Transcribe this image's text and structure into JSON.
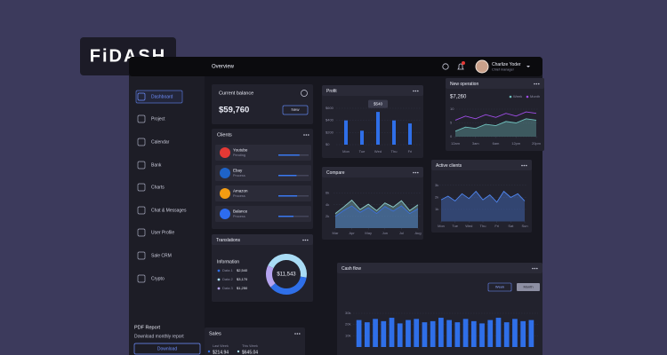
{
  "logo": "FiDASH",
  "topbar": {
    "title": "Overview",
    "user_name": "Charlize Yoder",
    "user_role": "Chief manager"
  },
  "sidebar": {
    "items": [
      "Dashboard",
      "Project",
      "Calendar",
      "Bank",
      "Charts",
      "Chat & Messages",
      "User Profile",
      "Sale CRM",
      "Crypto"
    ],
    "report_title": "PDF Report",
    "report_text": "Download monthly report",
    "button": "Download"
  },
  "balance": {
    "label": "Current balance",
    "value": "$59,760",
    "button": "New"
  },
  "clients": {
    "title": "Clients",
    "rows": [
      {
        "name": "Youtube",
        "status": "Pending",
        "progress": 70,
        "color": "#e53935"
      },
      {
        "name": "Ebay",
        "status": "Process",
        "progress": 60,
        "color": "#1e63c8"
      },
      {
        "name": "Amazon",
        "status": "Process",
        "progress": 62,
        "color": "#f39c12"
      },
      {
        "name": "Balance",
        "status": "Process",
        "progress": 50,
        "color": "#2d6cf0"
      }
    ]
  },
  "sales": {
    "title": "Sales",
    "items": [
      {
        "label": "Last Week",
        "value": "$214.94"
      },
      {
        "label": "This Week",
        "value": "$645.04"
      }
    ]
  },
  "chart_data": [
    {
      "type": "bar",
      "title": "Profit",
      "categories": [
        "Mon",
        "Tue",
        "Wed",
        "Thu",
        "Fri"
      ],
      "values": [
        400,
        230,
        540,
        400,
        350
      ],
      "color": "#2f6fe8",
      "tooltip": "$540",
      "ylim": [
        0,
        600
      ],
      "yticks": [
        {
          "value": 0,
          "label": "$0"
        },
        {
          "value": 200,
          "label": "$200"
        },
        {
          "value": 400,
          "label": "$400"
        },
        {
          "value": 600,
          "label": "$600"
        }
      ],
      "grid": true
    },
    {
      "type": "line",
      "title": "New operation",
      "subtitle": "$7,260",
      "x": [
        0,
        1,
        2,
        3,
        4,
        5,
        6,
        7,
        8
      ],
      "xlim": [
        0,
        8
      ],
      "xticks": [
        {
          "value": 0,
          "label": "12am"
        },
        {
          "value": 2,
          "label": "3am"
        },
        {
          "value": 4,
          "label": "6am"
        },
        {
          "value": 6,
          "label": "12pm"
        },
        {
          "value": 8,
          "label": "20pm"
        }
      ],
      "ylim": [
        0,
        10
      ],
      "yticks": [
        0,
        5,
        10
      ],
      "legend": "top-right",
      "series": [
        {
          "name": "Week",
          "color": "#6fc1bd",
          "values": [
            2,
            3.5,
            3,
            4.5,
            4,
            5.5,
            5,
            6.5,
            6
          ]
        },
        {
          "name": "Month",
          "color": "#a04de8",
          "values": [
            6,
            7.5,
            6.5,
            8,
            7,
            8.5,
            7.5,
            9,
            8.5
          ]
        }
      ]
    },
    {
      "type": "area",
      "title": "Compare",
      "x": [
        0,
        1,
        2,
        3,
        4,
        5,
        6,
        7,
        8,
        9,
        10
      ],
      "xlim": [
        0,
        10
      ],
      "xticks": [
        {
          "value": 0,
          "label": "Mar"
        },
        {
          "value": 2,
          "label": "Apr"
        },
        {
          "value": 4,
          "label": "May"
        },
        {
          "value": 6,
          "label": "Jun"
        },
        {
          "value": 8,
          "label": "Jul"
        },
        {
          "value": 10,
          "label": "Aug"
        }
      ],
      "ylim": [
        0,
        7000
      ],
      "yticks": [
        {
          "value": 2000,
          "label": "2k"
        },
        {
          "value": 4000,
          "label": "4k"
        },
        {
          "value": 6000,
          "label": "6k"
        }
      ],
      "series": [
        {
          "color": "#8fd0cf",
          "values": [
            2500,
            3600,
            4800,
            3200,
            4100,
            3000,
            4300,
            3600,
            4700,
            3000,
            4000
          ]
        },
        {
          "color": "#3b6fd8",
          "values": [
            2000,
            3000,
            3800,
            2700,
            3500,
            2500,
            3700,
            2900,
            3800,
            2500,
            3300
          ]
        }
      ]
    },
    {
      "type": "area",
      "title": "Active clients",
      "x": [
        0,
        1,
        2,
        3,
        4,
        5,
        6,
        7,
        8,
        9,
        10,
        11,
        12
      ],
      "xlim": [
        0,
        12
      ],
      "xticks": [
        {
          "value": 0,
          "label": "Mon"
        },
        {
          "value": 2,
          "label": "Tue"
        },
        {
          "value": 4,
          "label": "Wed"
        },
        {
          "value": 6,
          "label": "Thu"
        },
        {
          "value": 8,
          "label": "Fri"
        },
        {
          "value": 10,
          "label": "Sat"
        },
        {
          "value": 12,
          "label": "Sun"
        }
      ],
      "ylim": [
        0,
        3500
      ],
      "yticks": [
        {
          "value": 1000,
          "label": "1k"
        },
        {
          "value": 2000,
          "label": "2k"
        },
        {
          "value": 3000,
          "label": "3k"
        }
      ],
      "series": [
        {
          "color": "#4f86f0",
          "values": [
            1800,
            2100,
            1700,
            2300,
            1900,
            2500,
            1800,
            2200,
            1600,
            2500,
            2000,
            2300,
            1700
          ]
        }
      ]
    },
    {
      "type": "bar",
      "title": "Cash flow",
      "buttons": [
        "Week",
        "Month"
      ],
      "categories": [
        null,
        null,
        null,
        null,
        null,
        null,
        null,
        null,
        null,
        null,
        null,
        null,
        null,
        null,
        null,
        null,
        null,
        null,
        null,
        null,
        null,
        null
      ],
      "values": [
        24000,
        22000,
        25000,
        23000,
        26000,
        21000,
        24000,
        25000,
        22000,
        23000,
        26000,
        24000,
        22000,
        25000,
        23000,
        21000,
        24000,
        26000,
        22000,
        25000,
        23000,
        24000
      ],
      "color": "#2f6fe8",
      "ylim": [
        0,
        30000
      ],
      "yticks": [
        {
          "value": 10000,
          "label": "10k"
        },
        {
          "value": 20000,
          "label": "20k"
        },
        {
          "value": 30000,
          "label": "30k"
        }
      ]
    },
    {
      "type": "pie",
      "title": "Translations",
      "subtitle": "Information",
      "center_label": "$11,543",
      "categories": [
        "Data 1",
        "Data 2",
        "Data 3"
      ],
      "values": [
        2540,
        3170,
        1250
      ],
      "value_labels": [
        "$2,540",
        "$3,170",
        "$1,250"
      ],
      "colors": [
        "#2f6fe8",
        "#a9dcf5",
        "#b5a4f0"
      ]
    }
  ]
}
